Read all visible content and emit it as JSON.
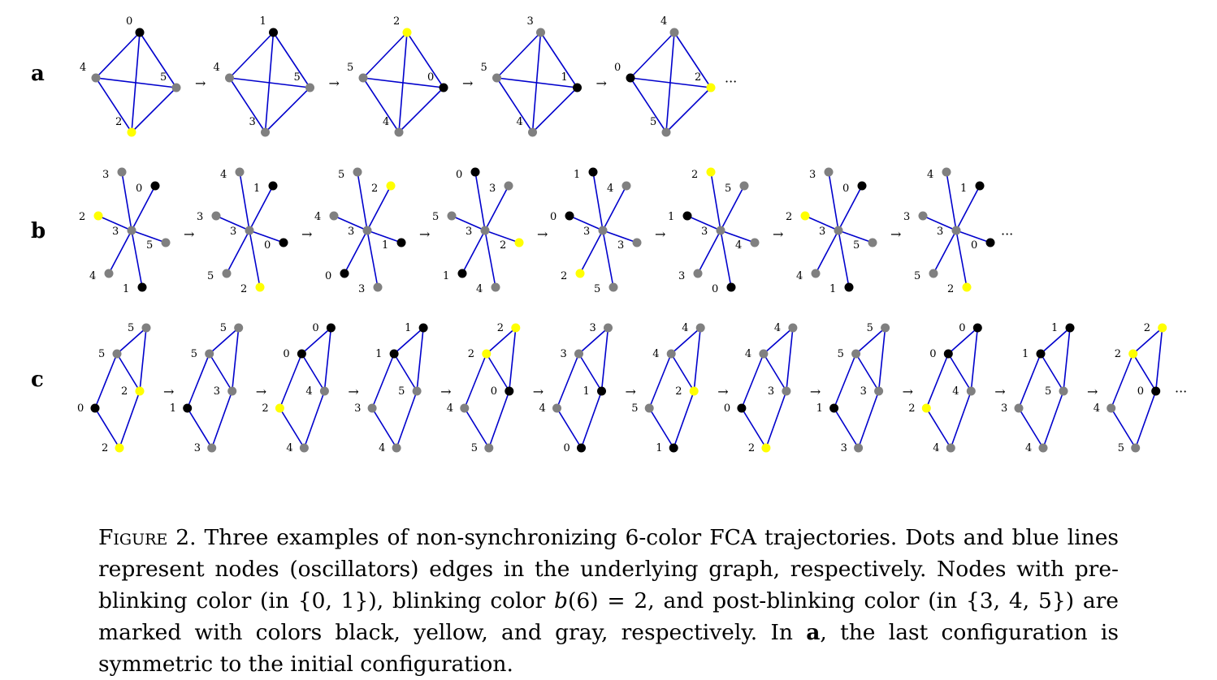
{
  "colors": {
    "pre_blinking": "#000000",
    "blinking": "#ffff00",
    "post_blinking": "#808080",
    "edge": "#0000cc"
  },
  "figure": {
    "arrow": "→",
    "ellipsis": "···",
    "rows": [
      {
        "label": "a",
        "graph": "tetrahedral",
        "frames": [
          {
            "labels": [
              "0",
              "4",
              "5",
              "2"
            ]
          },
          {
            "labels": [
              "1",
              "4",
              "5",
              "3"
            ]
          },
          {
            "labels": [
              "2",
              "5",
              "0",
              "4"
            ]
          },
          {
            "labels": [
              "3",
              "5",
              "1",
              "4"
            ]
          },
          {
            "labels": [
              "4",
              "0",
              "2",
              "5"
            ]
          }
        ]
      },
      {
        "label": "b",
        "graph": "star",
        "frames": [
          {
            "labels": [
              "3",
              "0",
              "2",
              "3",
              "5",
              "4",
              "1"
            ]
          },
          {
            "labels": [
              "4",
              "1",
              "3",
              "3",
              "0",
              "5",
              "2"
            ]
          },
          {
            "labels": [
              "5",
              "2",
              "4",
              "3",
              "1",
              "0",
              "3"
            ]
          },
          {
            "labels": [
              "0",
              "3",
              "5",
              "3",
              "2",
              "1",
              "4"
            ]
          },
          {
            "labels": [
              "1",
              "4",
              "0",
              "3",
              "3",
              "2",
              "5"
            ]
          },
          {
            "labels": [
              "2",
              "5",
              "1",
              "3",
              "4",
              "3",
              "0"
            ]
          },
          {
            "labels": [
              "3",
              "0",
              "2",
              "3",
              "5",
              "4",
              "1"
            ]
          },
          {
            "labels": [
              "4",
              "1",
              "3",
              "3",
              "0",
              "5",
              "2"
            ]
          }
        ]
      },
      {
        "label": "c",
        "graph": "kite",
        "frames": [
          {
            "labels": [
              "5",
              "5",
              "2",
              "0",
              "2"
            ]
          },
          {
            "labels": [
              "5",
              "5",
              "3",
              "1",
              "3"
            ]
          },
          {
            "labels": [
              "0",
              "0",
              "4",
              "2",
              "4"
            ]
          },
          {
            "labels": [
              "1",
              "1",
              "5",
              "3",
              "4"
            ]
          },
          {
            "labels": [
              "2",
              "2",
              "0",
              "4",
              "5"
            ]
          },
          {
            "labels": [
              "3",
              "3",
              "1",
              "4",
              "0"
            ]
          },
          {
            "labels": [
              "4",
              "4",
              "2",
              "5",
              "1"
            ]
          },
          {
            "labels": [
              "4",
              "4",
              "3",
              "0",
              "2"
            ]
          },
          {
            "labels": [
              "5",
              "5",
              "3",
              "1",
              "3"
            ]
          },
          {
            "labels": [
              "0",
              "0",
              "4",
              "2",
              "4"
            ]
          },
          {
            "labels": [
              "1",
              "1",
              "5",
              "3",
              "4"
            ]
          },
          {
            "labels": [
              "2",
              "2",
              "0",
              "4",
              "5"
            ]
          }
        ]
      }
    ]
  },
  "caption": {
    "figure_label": "Figure 2.",
    "s1": " Three examples of non-synchronizing 6-color FCA trajectories. Dots and blue lines represent nodes (oscillators) edges in the underlying graph, respectively. Nodes with pre-blinking color (in {0, 1}), blinking color ",
    "math_b": "b",
    "s2": "(6) = 2, and post-blinking color (in {3, 4, 5}) are marked with colors black, yellow, and gray, respectively. In ",
    "bold_a": "a",
    "s3": ", the last configuration is symmetric to the initial configuration."
  }
}
